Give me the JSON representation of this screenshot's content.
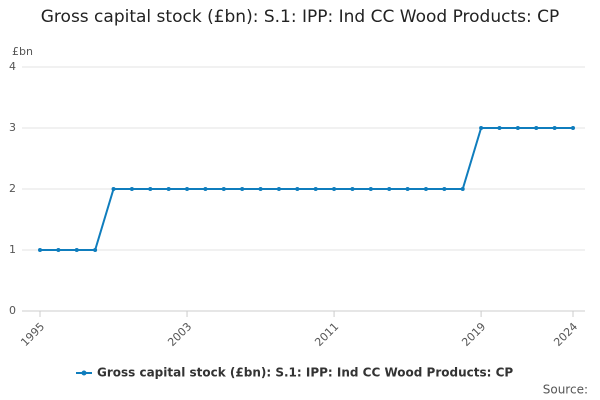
{
  "chart_data": {
    "type": "line",
    "title": "Gross capital stock (£bn): S.1: IPP: Ind CC Wood Products: CP",
    "y_label": "£bn",
    "source": "Source:",
    "x": [
      1995,
      1996,
      1997,
      1998,
      1999,
      2000,
      2001,
      2002,
      2003,
      2004,
      2005,
      2006,
      2007,
      2008,
      2009,
      2010,
      2011,
      2012,
      2013,
      2014,
      2015,
      2016,
      2017,
      2018,
      2019,
      2020,
      2021,
      2022,
      2023,
      2024
    ],
    "series": [
      {
        "name": "Gross capital stock (£bn): S.1: IPP: Ind CC Wood Products: CP",
        "color": "#0f7dbd",
        "values": [
          1,
          1,
          1,
          1,
          2,
          2,
          2,
          2,
          2,
          2,
          2,
          2,
          2,
          2,
          2,
          2,
          2,
          2,
          2,
          2,
          2,
          2,
          2,
          2,
          3,
          3,
          3,
          3,
          3,
          3
        ]
      }
    ],
    "xlim": [
      1995,
      2024
    ],
    "xticks": [
      1995,
      2003,
      2011,
      2019,
      2024
    ],
    "ylim": [
      0,
      4
    ],
    "yticks": [
      0,
      1,
      2,
      3,
      4
    ],
    "grid": true
  }
}
